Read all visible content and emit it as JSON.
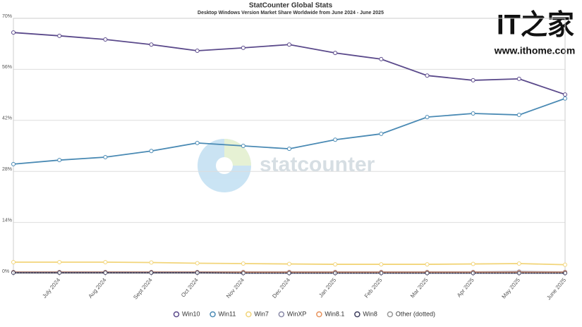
{
  "chart_data": {
    "type": "line",
    "title": "StatCounter Global Stats",
    "subtitle": "Desktop Windows Version Market Share Worldwide from June 2024 - June 2025",
    "watermark": "statcounter",
    "logo_mark": "IT之家",
    "logo_text": "www.ithome.com",
    "categories": [
      null,
      "July 2024",
      "Aug 2024",
      "Sept 2024",
      "Oct 2024",
      "Nov 2024",
      "Dec 2024",
      "Jan 2025",
      "Feb 2025",
      "Mar 2025",
      "Apr 2025",
      "May 2025",
      "June 2025"
    ],
    "ylim": [
      0,
      70
    ],
    "yticks": [
      {
        "value": 0,
        "label": "0%"
      },
      {
        "value": 14,
        "label": "14%"
      },
      {
        "value": 28,
        "label": "28%"
      },
      {
        "value": 42,
        "label": "42%"
      },
      {
        "value": 56,
        "label": "56%"
      },
      {
        "value": 70,
        "label": "70%"
      }
    ],
    "grid": true,
    "series": [
      {
        "name": "Win10",
        "color": "#5b4a8b",
        "values": [
          66.1,
          65.2,
          64.2,
          62.8,
          61.1,
          61.9,
          62.8,
          60.5,
          58.8,
          54.3,
          53.0,
          53.4,
          49.1
        ]
      },
      {
        "name": "Win11",
        "color": "#4a8ab4",
        "values": [
          30.0,
          31.1,
          31.9,
          33.6,
          35.8,
          35.0,
          34.2,
          36.7,
          38.3,
          42.9,
          43.9,
          43.5,
          48.0
        ]
      },
      {
        "name": "Win7",
        "color": "#f2d57a",
        "values": [
          3.1,
          3.1,
          3.1,
          3.0,
          2.8,
          2.7,
          2.6,
          2.5,
          2.5,
          2.5,
          2.6,
          2.7,
          2.4
        ]
      },
      {
        "name": "WinXP",
        "color": "#8a8aa8",
        "values": [
          0.4,
          0.4,
          0.4,
          0.4,
          0.4,
          0.4,
          0.4,
          0.4,
          0.4,
          0.4,
          0.4,
          0.5,
          0.4
        ]
      },
      {
        "name": "Win8.1",
        "color": "#e8935c",
        "values": [
          0.3,
          0.3,
          0.3,
          0.3,
          0.3,
          0.3,
          0.3,
          0.3,
          0.3,
          0.3,
          0.3,
          0.3,
          0.3
        ]
      },
      {
        "name": "Win8",
        "color": "#3e3e5e",
        "values": [
          0.2,
          0.2,
          0.2,
          0.2,
          0.2,
          0.1,
          0.1,
          0.1,
          0.1,
          0.1,
          0.1,
          0.1,
          0.1
        ]
      },
      {
        "name": "Other (dotted)",
        "color": "#999999",
        "style": "dotted",
        "values": [
          0.1,
          0.1,
          0.1,
          0.1,
          0.1,
          0.1,
          0.1,
          0.1,
          0.1,
          0.1,
          0.1,
          0.1,
          0.1
        ]
      }
    ]
  }
}
